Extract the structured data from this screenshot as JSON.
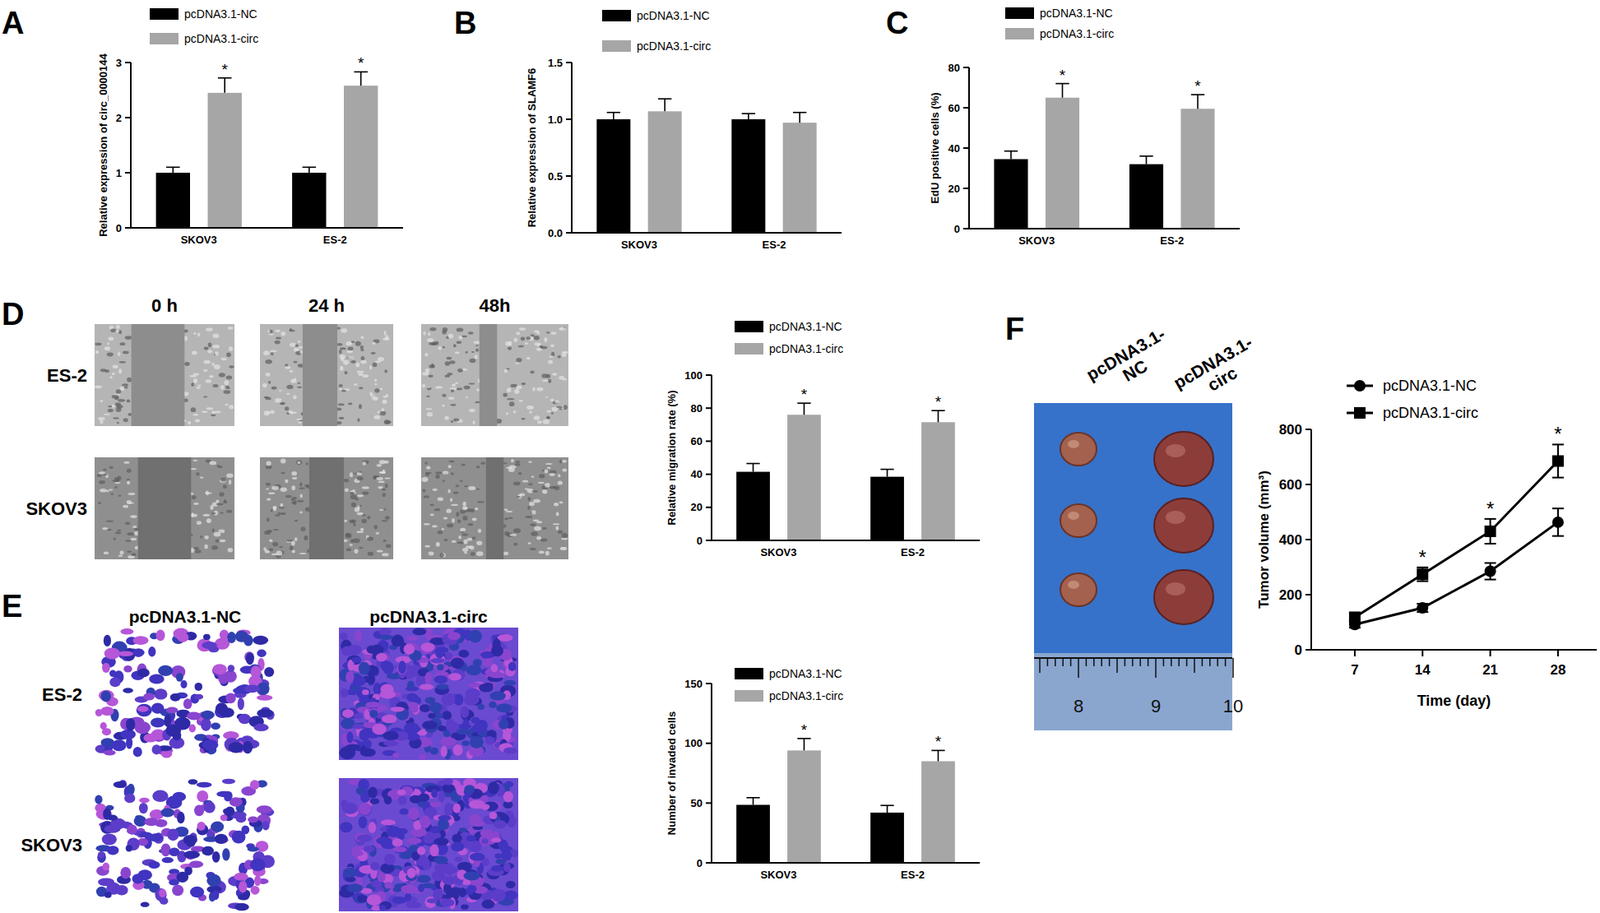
{
  "panel_labels": [
    "A",
    "B",
    "C",
    "D",
    "E",
    "F"
  ],
  "images": {
    "D": {
      "columns": [
        "0 h",
        "24 h",
        "48h"
      ],
      "rows": [
        "ES-2",
        "SKOV3"
      ]
    },
    "E": {
      "columns": [
        "pcDNA3.1-NC",
        "pcDNA3.1-circ"
      ],
      "rows": [
        "ES-2",
        "SKOV3"
      ]
    },
    "F": {
      "columns": [
        [
          "pcDNA3.1-",
          "NC"
        ],
        [
          "pcDNA3.1-",
          "circ"
        ]
      ],
      "ruler": [
        8,
        9,
        10
      ]
    }
  },
  "chart_data": [
    {
      "type": "bar",
      "ylabel": "Relative expression of circ_0000144",
      "categories": [
        "SKOV3",
        "ES-2"
      ],
      "ylim": [
        0,
        3
      ],
      "yticks": [
        0,
        1,
        2,
        3
      ],
      "grid": false,
      "legend": "top",
      "series": [
        {
          "name": "pcDNA3.1-NC",
          "color": "#000000",
          "values": [
            1.0,
            1.0
          ],
          "errors": [
            0.1,
            0.1
          ]
        },
        {
          "name": "pcDNA3.1-circ",
          "color": "#a6a6a6",
          "values": [
            2.45,
            2.58
          ],
          "errors": [
            0.27,
            0.25
          ],
          "significance": [
            "*",
            "*"
          ]
        }
      ]
    },
    {
      "type": "bar",
      "ylabel": "Relative expression of SLAMF6",
      "categories": [
        "SKOV3",
        "ES-2"
      ],
      "ylim": [
        0,
        1.5
      ],
      "yticks": [
        {
          "value": 0,
          "label": "0.0"
        },
        {
          "value": 0.5,
          "label": "0.5"
        },
        {
          "value": 1,
          "label": "1.0"
        },
        {
          "value": 1.5,
          "label": "1.5"
        }
      ],
      "grid": false,
      "legend": "top",
      "series": [
        {
          "name": "pcDNA3.1-NC",
          "color": "#000000",
          "values": [
            1.0,
            1.0
          ],
          "errors": [
            0.06,
            0.05
          ]
        },
        {
          "name": "pcDNA3.1-circ",
          "color": "#a6a6a6",
          "values": [
            1.07,
            0.97
          ],
          "errors": [
            0.11,
            0.09
          ]
        }
      ]
    },
    {
      "type": "bar",
      "ylabel": "EdU positive cells (%)",
      "categories": [
        "SKOV3",
        "ES-2"
      ],
      "ylim": [
        0,
        80
      ],
      "yticks": [
        0,
        20,
        40,
        60,
        80
      ],
      "grid": false,
      "legend": "top",
      "series": [
        {
          "name": "pcDNA3.1-NC",
          "color": "#000000",
          "values": [
            34.5,
            32
          ],
          "errors": [
            4,
            4
          ]
        },
        {
          "name": "pcDNA3.1-circ",
          "color": "#a6a6a6",
          "values": [
            65,
            59.5
          ],
          "errors": [
            7,
            7
          ],
          "significance": [
            "*",
            "*"
          ]
        }
      ]
    },
    {
      "type": "bar",
      "ylabel": "Relative migration rate (%)",
      "categories": [
        "SKOV3",
        "ES-2"
      ],
      "ylim": [
        0,
        100
      ],
      "yticks": [
        0,
        20,
        40,
        60,
        80,
        100
      ],
      "grid": false,
      "legend": "top",
      "series": [
        {
          "name": "pcDNA3.1-NC",
          "color": "#000000",
          "values": [
            41.5,
            38.5
          ],
          "errors": [
            5,
            4.5
          ]
        },
        {
          "name": "pcDNA3.1-circ",
          "color": "#a6a6a6",
          "values": [
            76,
            71.5
          ],
          "errors": [
            7,
            7
          ],
          "significance": [
            "*",
            "*"
          ]
        }
      ]
    },
    {
      "type": "bar",
      "ylabel": "Number of invaded cells",
      "categories": [
        "SKOV3",
        "ES-2"
      ],
      "ylim": [
        0,
        150
      ],
      "yticks": [
        0,
        50,
        100,
        150
      ],
      "grid": false,
      "legend": "top",
      "series": [
        {
          "name": "pcDNA3.1-NC",
          "color": "#000000",
          "values": [
            48.5,
            42
          ],
          "errors": [
            6,
            6
          ]
        },
        {
          "name": "pcDNA3.1-circ",
          "color": "#a6a6a6",
          "values": [
            94,
            85
          ],
          "errors": [
            10,
            9
          ],
          "significance": [
            "*",
            "*"
          ]
        }
      ]
    },
    {
      "type": "line",
      "xlabel": "Time (day)",
      "ylabel": "Tumor volume (mm³)",
      "x": [
        7,
        14,
        21,
        28
      ],
      "xlim": [
        2.5,
        32
      ],
      "xticks": [
        7,
        14,
        21,
        28
      ],
      "ylim": [
        0,
        800
      ],
      "yticks": [
        0,
        200,
        400,
        600,
        800
      ],
      "grid": false,
      "legend": "top",
      "series": [
        {
          "name": "pcDNA3.1-NC",
          "color": "#000000",
          "marker": "circle",
          "values": [
            92,
            152,
            285,
            463
          ],
          "errors": [
            12,
            15,
            30,
            50
          ]
        },
        {
          "name": "pcDNA3.1-circ",
          "color": "#000000",
          "marker": "square",
          "values": [
            118,
            274,
            430,
            685
          ],
          "errors": [
            15,
            25,
            45,
            60
          ],
          "significance": [
            null,
            "*",
            "*",
            "*"
          ]
        }
      ]
    }
  ]
}
